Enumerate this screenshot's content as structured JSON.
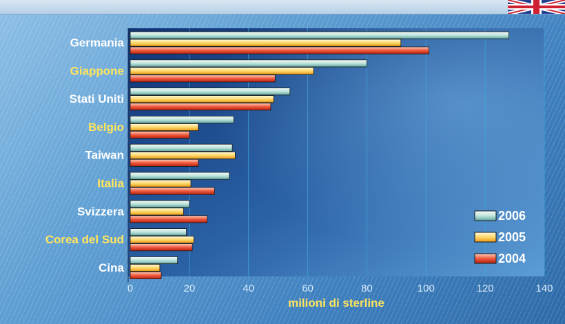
{
  "flag_icon": "uk-flag-icon",
  "colors": {
    "plot_bg_top": "#123a7a",
    "plot_bg_bottom": "#5a9bd6",
    "gridline": "#3fa6dc",
    "label_white": "#ffffff",
    "label_yellow": "#ffe55c",
    "series_2006": "#bfe4dc",
    "series_2005": "#ffd86b",
    "series_2004": "#ef5a3e"
  },
  "chart_data": {
    "type": "bar",
    "orientation": "horizontal",
    "categories": [
      "Germania",
      "Giappone",
      "Stati Uniti",
      "Belgio",
      "Taiwan",
      "Italia",
      "Svizzera",
      "Corea del Sud",
      "Cina"
    ],
    "category_label_colors": [
      "white",
      "yellow",
      "white",
      "yellow",
      "white",
      "yellow",
      "white",
      "yellow",
      "white"
    ],
    "series": [
      {
        "name": "2006",
        "values": [
          128,
          80,
          54,
          35,
          34.5,
          33.5,
          20,
          19,
          16
        ]
      },
      {
        "name": "2005",
        "values": [
          91.5,
          62,
          48.5,
          23,
          35.5,
          20.5,
          18,
          21.5,
          10
        ]
      },
      {
        "name": "2004",
        "values": [
          101,
          49,
          47.5,
          20,
          23,
          28.5,
          26,
          21,
          10.5
        ]
      }
    ],
    "xlabel": "milioni di sterline",
    "ylabel": "",
    "xlim": [
      0,
      140
    ],
    "xticks": [
      "0",
      "20",
      "40",
      "60",
      "80",
      "100",
      "120",
      "140"
    ],
    "grid": true,
    "legend_position": "bottom-right"
  }
}
